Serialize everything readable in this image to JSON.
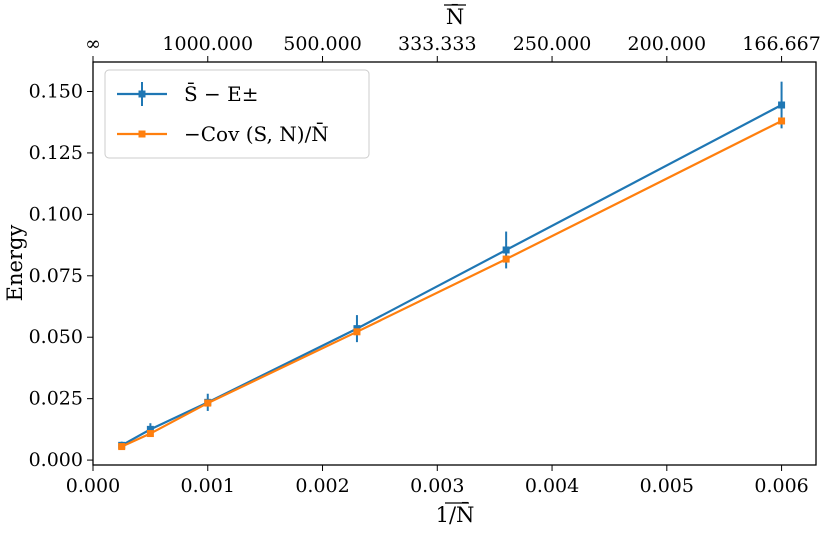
{
  "chart_data": {
    "type": "line",
    "xlabel": "1/N̄",
    "ylabel": "Energy",
    "top_xlabel": "N̄",
    "xlim": [
      0.0,
      0.0063
    ],
    "ylim": [
      -0.002,
      0.162
    ],
    "x_ticks": [
      0.0,
      0.001,
      0.002,
      0.003,
      0.004,
      0.005,
      0.006
    ],
    "x_tick_labels": [
      "0.000",
      "0.001",
      "0.002",
      "0.003",
      "0.004",
      "0.005",
      "0.006"
    ],
    "y_ticks": [
      0.0,
      0.025,
      0.05,
      0.075,
      0.1,
      0.125,
      0.15
    ],
    "y_tick_labels": [
      "0.000",
      "0.025",
      "0.050",
      "0.075",
      "0.100",
      "0.125",
      "0.150"
    ],
    "top_x_ticks": [
      0.0,
      0.001,
      0.002,
      0.003,
      0.004,
      0.005,
      0.006
    ],
    "top_x_tick_labels": [
      "∞",
      "1000.000",
      "500.000",
      "333.333",
      "250.000",
      "200.000",
      "166.667"
    ],
    "grid": false,
    "legend_position": "top-left",
    "series": [
      {
        "name": "S̄ − E±",
        "color": "#1f77b4",
        "marker": "square",
        "x": [
          0.00025,
          0.0005,
          0.001,
          0.0023,
          0.0036,
          0.006
        ],
        "y": [
          0.006,
          0.0125,
          0.0235,
          0.0535,
          0.0855,
          0.1445
        ],
        "yerr": [
          0.0015,
          0.0025,
          0.0035,
          0.0055,
          0.0075,
          0.0095
        ]
      },
      {
        "name": "−Cov (S, N)/N̄",
        "color": "#ff7f0e",
        "marker": "square",
        "x": [
          0.00025,
          0.0005,
          0.001,
          0.0023,
          0.0036,
          0.006
        ],
        "y": [
          0.0055,
          0.0108,
          0.0232,
          0.0522,
          0.0818,
          0.138
        ]
      }
    ]
  }
}
